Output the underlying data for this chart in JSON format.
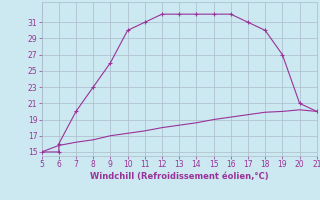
{
  "xlabel": "Windchill (Refroidissement éolien,°C)",
  "x_main": [
    5,
    6,
    6,
    7,
    8,
    9,
    10,
    11,
    12,
    13,
    14,
    15,
    16,
    17,
    18,
    19,
    20,
    21
  ],
  "y_main": [
    15,
    15,
    16,
    20,
    23,
    26,
    30,
    31,
    32,
    32,
    32,
    32,
    32,
    31,
    30,
    27,
    21,
    20
  ],
  "x_lower": [
    5,
    6,
    7,
    8,
    9,
    10,
    11,
    12,
    13,
    14,
    15,
    16,
    17,
    18,
    19,
    20,
    21
  ],
  "y_lower": [
    15,
    15.8,
    16.2,
    16.5,
    17.0,
    17.3,
    17.6,
    18.0,
    18.3,
    18.6,
    19.0,
    19.3,
    19.6,
    19.9,
    20.0,
    20.2,
    20.0
  ],
  "line_color": "#993399",
  "bg_color": "#cce8f0",
  "grid_color": "#aabbcc",
  "tick_color": "#993399",
  "xlim": [
    5,
    21
  ],
  "ylim": [
    14.5,
    33.5
  ],
  "yticks": [
    15,
    17,
    19,
    21,
    23,
    25,
    27,
    29,
    31
  ],
  "xticks": [
    5,
    6,
    7,
    8,
    9,
    10,
    11,
    12,
    13,
    14,
    15,
    16,
    17,
    18,
    19,
    20,
    21
  ],
  "tick_fontsize": 5.5,
  "xlabel_fontsize": 6.0
}
